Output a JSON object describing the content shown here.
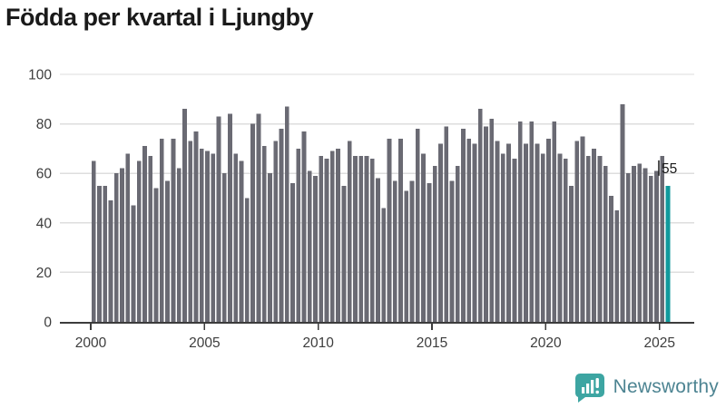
{
  "header": {
    "title": "Födda per kvartal i Ljungby"
  },
  "chart_data": {
    "type": "bar",
    "title": "Födda per kvartal i Ljungby",
    "xlabel": "",
    "ylabel": "",
    "ylim": [
      0,
      100
    ],
    "yticks": [
      0,
      20,
      40,
      60,
      80,
      100
    ],
    "xticks": [
      2000,
      2005,
      2010,
      2015,
      2020,
      2025
    ],
    "grid": true,
    "legend_position": "none",
    "period_start": "2000 Q1",
    "period_end": "2025 Q2",
    "quarters_per_year": 4,
    "values": [
      65,
      55,
      55,
      49,
      60,
      62,
      68,
      47,
      65,
      71,
      67,
      54,
      74,
      57,
      74,
      62,
      86,
      73,
      77,
      70,
      69,
      68,
      83,
      60,
      84,
      68,
      65,
      50,
      80,
      84,
      71,
      60,
      73,
      78,
      87,
      56,
      70,
      77,
      61,
      59,
      67,
      66,
      69,
      70,
      55,
      73,
      67,
      67,
      67,
      66,
      58,
      46,
      74,
      57,
      74,
      53,
      57,
      78,
      68,
      56,
      63,
      72,
      79,
      57,
      63,
      78,
      74,
      72,
      86,
      79,
      82,
      73,
      68,
      72,
      66,
      81,
      72,
      81,
      72,
      68,
      74,
      81,
      68,
      66,
      55,
      73,
      75,
      67,
      70,
      67,
      63,
      51,
      45,
      88,
      60,
      63,
      64,
      62,
      59,
      61,
      67,
      55
    ],
    "highlight_last_bar": true,
    "highlight_value_label": "55",
    "colors": {
      "bar": "#6a6a73",
      "highlight": "#109a9c",
      "grid": "#dedede",
      "axis": "#3c3c3c",
      "tick_label": "#3d3d3d",
      "value_label": "#1a1a1a"
    }
  },
  "footer": {
    "brand": "Newsworthy",
    "logo_icon": "bar-chart-exclamation-icon",
    "colors": {
      "bubble": "#3da5a2",
      "icon": "#ffffff",
      "text": "#4d8492"
    }
  }
}
